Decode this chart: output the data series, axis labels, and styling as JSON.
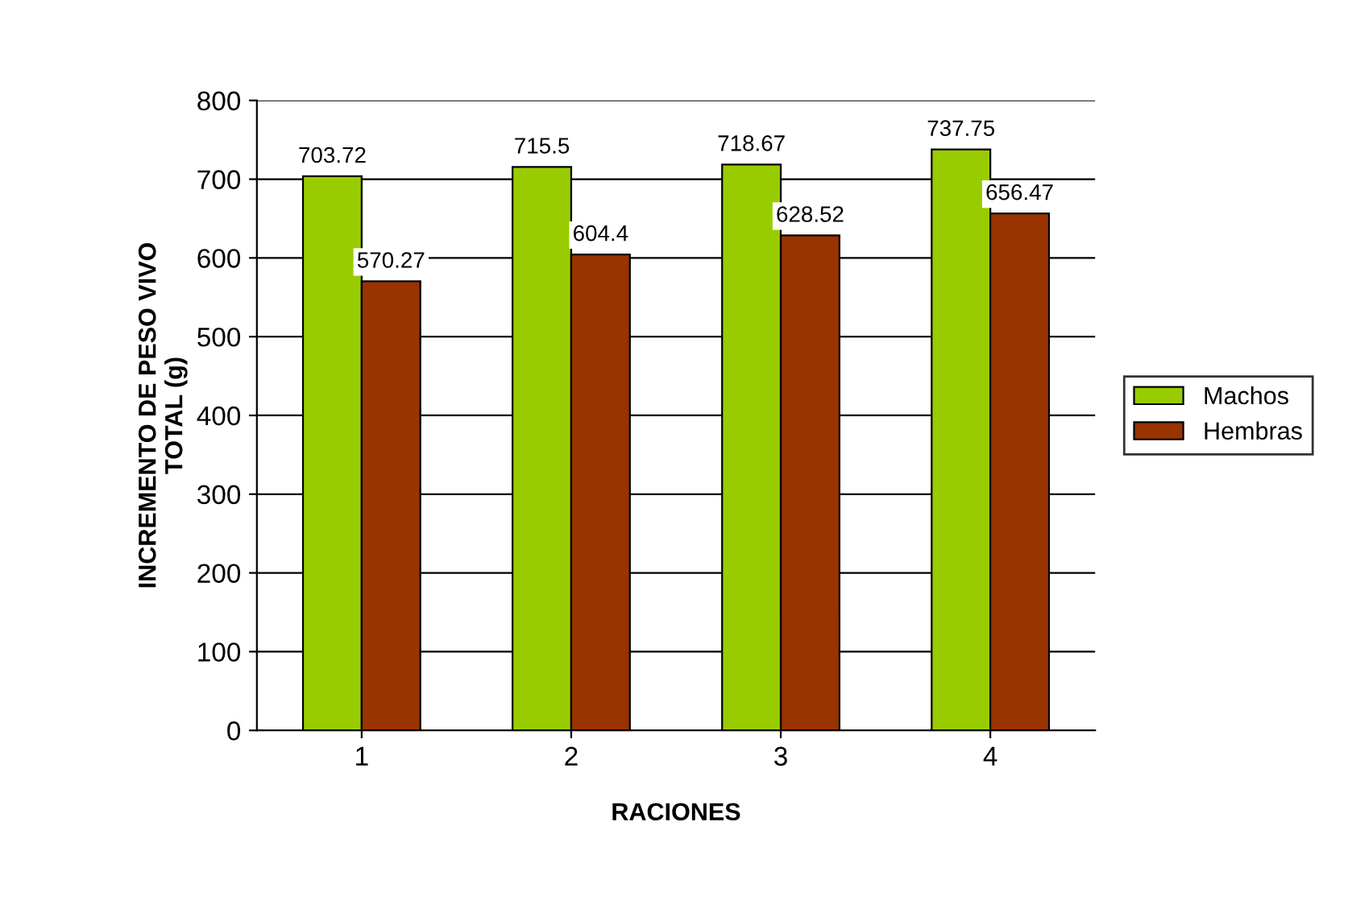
{
  "chart_data": {
    "type": "bar",
    "xlabel": "RACIONES",
    "ylabel": "INCREMENTO DE PESO VIVO\nTOTAL (g)",
    "categories": [
      "1",
      "2",
      "3",
      "4"
    ],
    "series": [
      {
        "name": "Machos",
        "color": "#99cc00",
        "values": [
          703.72,
          715.5,
          718.67,
          737.75
        ]
      },
      {
        "name": "Hembras",
        "color": "#993300",
        "values": [
          570.27,
          604.4,
          628.52,
          656.47
        ]
      }
    ],
    "ylim": [
      0,
      800
    ],
    "yticks": [
      0,
      100,
      200,
      300,
      400,
      500,
      600,
      700,
      800
    ],
    "grid": "y",
    "legend": "right",
    "data_labels": true
  }
}
